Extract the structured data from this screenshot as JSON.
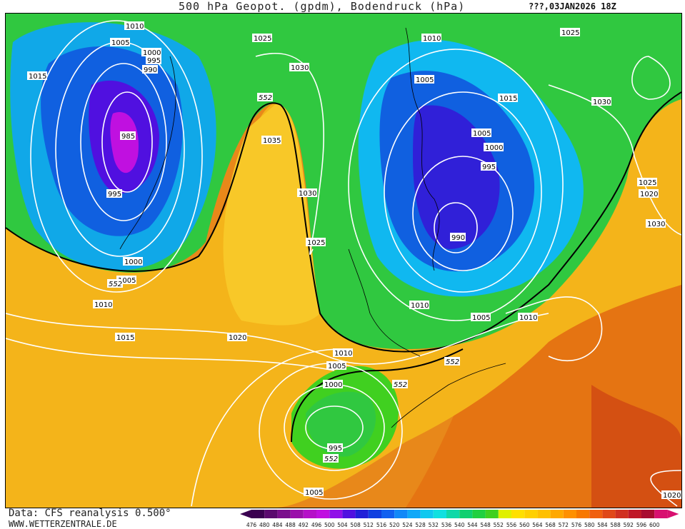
{
  "header": {
    "title": "500 hPa Geopot. (gpdm), Bodendruck (hPa)",
    "run_label": "???,03JAN2026 18Z"
  },
  "footer": {
    "data_source": "Data: CFS reanalysis 0.500°",
    "website": "WWW.WETTERZENTRALE.DE"
  },
  "legend": {
    "values": [
      "476",
      "480",
      "484",
      "488",
      "492",
      "496",
      "500",
      "504",
      "508",
      "512",
      "516",
      "520",
      "524",
      "528",
      "532",
      "536",
      "540",
      "544",
      "548",
      "552",
      "556",
      "560",
      "564",
      "568",
      "572",
      "576",
      "580",
      "584",
      "588",
      "592",
      "596",
      "600"
    ],
    "colors": [
      "#3a0050",
      "#5a0a6e",
      "#7a0f8c",
      "#9a10aa",
      "#b510c8",
      "#c010e0",
      "#9010e8",
      "#5010e0",
      "#2020d8",
      "#1040e0",
      "#1060f0",
      "#1088f8",
      "#10a8f8",
      "#10c8f0",
      "#10e0e0",
      "#10d8a8",
      "#10d070",
      "#20d040",
      "#40d020",
      "#e0f000",
      "#ffe000",
      "#ffd000",
      "#ffc000",
      "#ffa800",
      "#ff9000",
      "#f87800",
      "#f06010",
      "#e04818",
      "#d03020",
      "#c01828",
      "#a80c30",
      "#d81070"
    ]
  },
  "map": {
    "pressure_labels": [
      {
        "text": "1010"
      },
      {
        "text": "1005"
      },
      {
        "text": "1000"
      },
      {
        "text": "995"
      },
      {
        "text": "990"
      },
      {
        "text": "1015"
      },
      {
        "text": "985"
      },
      {
        "text": "995"
      },
      {
        "text": "1000"
      },
      {
        "text": "1005"
      },
      {
        "text": "1010"
      },
      {
        "text": "1015"
      },
      {
        "text": "1025"
      },
      {
        "text": "1030"
      },
      {
        "text": "1035"
      },
      {
        "text": "1030"
      },
      {
        "text": "1025"
      },
      {
        "text": "1020"
      },
      {
        "text": "1010"
      },
      {
        "text": "1005"
      },
      {
        "text": "1000"
      },
      {
        "text": "995"
      },
      {
        "text": "1005"
      },
      {
        "text": "1010"
      },
      {
        "text": "1005"
      },
      {
        "text": "1000"
      },
      {
        "text": "995"
      },
      {
        "text": "990"
      },
      {
        "text": "1005"
      },
      {
        "text": "1010"
      },
      {
        "text": "1015"
      },
      {
        "text": "1030"
      },
      {
        "text": "1025"
      },
      {
        "text": "1025"
      },
      {
        "text": "1020"
      },
      {
        "text": "1030"
      },
      {
        "text": "1010"
      },
      {
        "text": "1005"
      },
      {
        "text": "1020"
      }
    ],
    "height_labels": [
      {
        "text": "552"
      },
      {
        "text": "552"
      },
      {
        "text": "552"
      },
      {
        "text": "552"
      },
      {
        "text": "552"
      }
    ]
  }
}
